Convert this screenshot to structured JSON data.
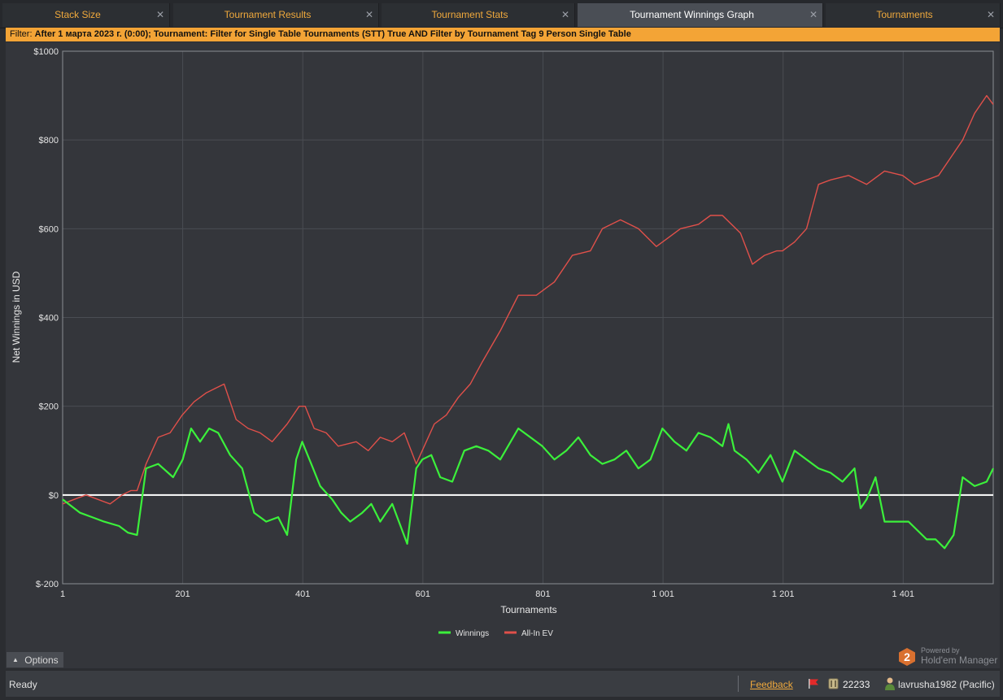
{
  "tabs": [
    {
      "label": "Stack Size"
    },
    {
      "label": "Tournament Results"
    },
    {
      "label": "Tournament Stats"
    },
    {
      "label": "Tournament Winnings Graph"
    },
    {
      "label": "Tournaments"
    }
  ],
  "filter": {
    "label": "Filter:",
    "text": "After 1 марта 2023 г. (0:00); Tournament: Filter for Single Table Tournaments (STT) True AND Filter by Tournament Tag  9 Person Single Table"
  },
  "options": {
    "label": "Options",
    "icon": "chevron-up-icon"
  },
  "powered": {
    "by": "Powered by",
    "product": "Hold'em Manager",
    "badge": "2"
  },
  "status": {
    "ready": "Ready",
    "feedback": "Feedback",
    "count": "22233",
    "user": "lavrusha1982 (Pacific)"
  },
  "colors": {
    "winnings": "#3bf03b",
    "allin_ev": "#e0504a",
    "accent": "#f3a436"
  },
  "chart_data": {
    "type": "line",
    "xlabel": "Tournaments",
    "ylabel": "Net Winnings in USD",
    "xlim": [
      1,
      1551
    ],
    "ylim": [
      -200,
      1000
    ],
    "x_ticks": [
      1,
      201,
      401,
      601,
      801,
      1001,
      1201,
      1401
    ],
    "x_tick_labels": [
      "1",
      "201",
      "401",
      "601",
      "801",
      "1 001",
      "1 201",
      "1 401"
    ],
    "y_ticks": [
      -200,
      0,
      200,
      400,
      600,
      800,
      1000
    ],
    "y_tick_labels": [
      "$-200",
      "$0",
      "$200",
      "$400",
      "$600",
      "$800",
      "$1000"
    ],
    "grid": true,
    "legend_position": "bottom",
    "series": [
      {
        "name": "Winnings",
        "color": "#3bf03b",
        "x": [
          1,
          30,
          50,
          70,
          95,
          110,
          125,
          140,
          160,
          185,
          201,
          215,
          230,
          245,
          260,
          280,
          300,
          320,
          340,
          360,
          375,
          390,
          400,
          415,
          430,
          450,
          465,
          480,
          500,
          515,
          530,
          550,
          575,
          590,
          600,
          615,
          630,
          650,
          670,
          690,
          710,
          730,
          760,
          780,
          800,
          820,
          840,
          860,
          880,
          900,
          920,
          940,
          960,
          980,
          1000,
          1020,
          1040,
          1060,
          1080,
          1100,
          1110,
          1120,
          1140,
          1160,
          1180,
          1200,
          1220,
          1240,
          1260,
          1280,
          1300,
          1320,
          1330,
          1340,
          1355,
          1370,
          1390,
          1410,
          1425,
          1440,
          1455,
          1470,
          1485,
          1500,
          1520,
          1540,
          1551
        ],
        "y": [
          -10,
          -40,
          -50,
          -60,
          -70,
          -85,
          -90,
          60,
          70,
          40,
          80,
          150,
          120,
          150,
          140,
          90,
          60,
          -40,
          -60,
          -50,
          -90,
          80,
          120,
          70,
          20,
          -10,
          -40,
          -60,
          -40,
          -20,
          -60,
          -20,
          -110,
          60,
          80,
          90,
          40,
          30,
          100,
          110,
          100,
          80,
          150,
          130,
          110,
          80,
          100,
          130,
          90,
          70,
          80,
          100,
          60,
          80,
          150,
          120,
          100,
          140,
          130,
          110,
          160,
          100,
          80,
          50,
          90,
          30,
          100,
          80,
          60,
          50,
          30,
          60,
          -30,
          -10,
          40,
          -60,
          -60,
          -60,
          -80,
          -100,
          -100,
          -120,
          -90,
          40,
          20,
          30,
          60
        ]
      },
      {
        "name": "All-In EV",
        "color": "#e0504a",
        "x": [
          1,
          20,
          40,
          60,
          80,
          100,
          115,
          125,
          140,
          160,
          180,
          200,
          220,
          240,
          255,
          270,
          290,
          310,
          330,
          350,
          375,
          395,
          405,
          420,
          440,
          460,
          490,
          510,
          530,
          550,
          570,
          590,
          620,
          640,
          660,
          680,
          700,
          730,
          760,
          790,
          820,
          850,
          880,
          900,
          930,
          960,
          990,
          1010,
          1030,
          1060,
          1080,
          1100,
          1130,
          1150,
          1170,
          1190,
          1200,
          1220,
          1240,
          1260,
          1280,
          1310,
          1340,
          1370,
          1400,
          1420,
          1440,
          1460,
          1480,
          1500,
          1520,
          1540,
          1551
        ],
        "y": [
          -20,
          -10,
          0,
          -10,
          -20,
          0,
          10,
          10,
          70,
          130,
          140,
          180,
          210,
          230,
          240,
          250,
          170,
          150,
          140,
          120,
          160,
          200,
          200,
          150,
          140,
          110,
          120,
          100,
          130,
          120,
          140,
          70,
          160,
          180,
          220,
          250,
          300,
          370,
          450,
          450,
          480,
          540,
          550,
          600,
          620,
          600,
          560,
          580,
          600,
          610,
          630,
          630,
          590,
          520,
          540,
          550,
          550,
          570,
          600,
          700,
          710,
          720,
          700,
          730,
          720,
          700,
          710,
          720,
          760,
          800,
          860,
          900,
          880
        ]
      }
    ]
  }
}
